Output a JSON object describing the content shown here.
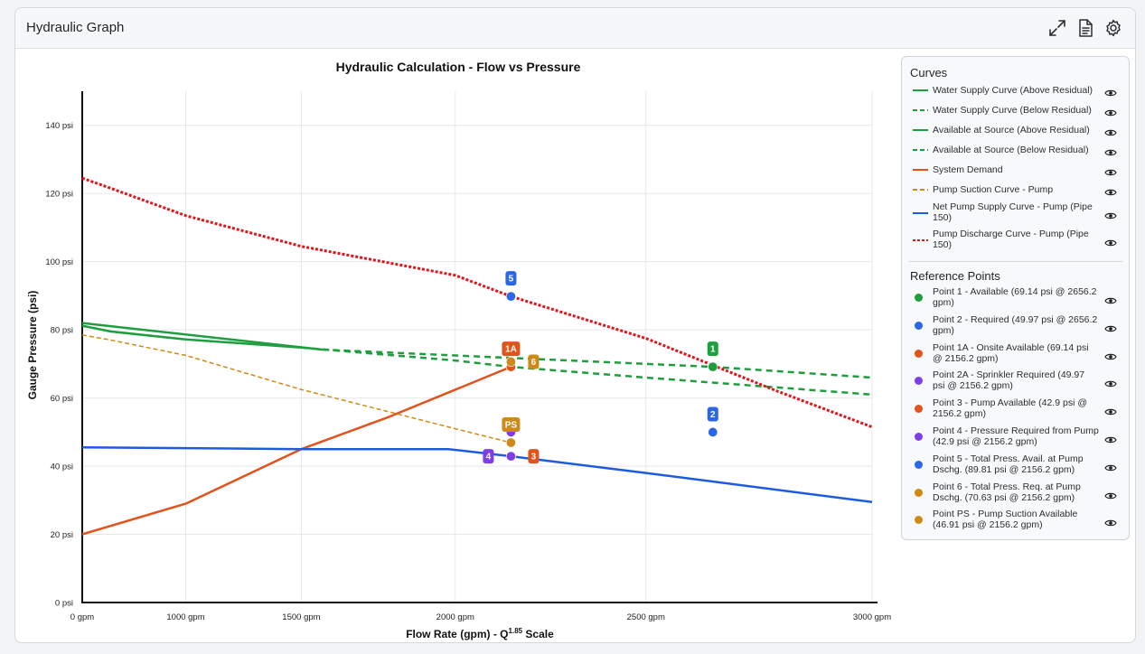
{
  "panel": {
    "title": "Hydraulic Graph",
    "icons": [
      "expand-icon",
      "document-icon",
      "gear-icon"
    ]
  },
  "legend": {
    "curves_heading": "Curves",
    "reference_heading": "Reference Points",
    "curves": [
      {
        "label": "Water Supply Curve (Above Residual)",
        "color": "#1e9e3f",
        "style": "solid"
      },
      {
        "label": "Water Supply Curve (Below Residual)",
        "color": "#1e9e3f",
        "style": "dashed"
      },
      {
        "label": "Available at Source (Above Residual)",
        "color": "#1e9e3f",
        "style": "solid"
      },
      {
        "label": "Available at Source (Below Residual)",
        "color": "#1e9e3f",
        "style": "dashed"
      },
      {
        "label": "System Demand",
        "color": "#e2521b",
        "style": "solid"
      },
      {
        "label": "Pump Suction Curve - Pump",
        "color": "#cf8a16",
        "style": "dashed"
      },
      {
        "label": "Net Pump Supply Curve - Pump (Pipe 150)",
        "color": "#1f5be0",
        "style": "solid"
      },
      {
        "label": "Pump Discharge Curve - Pump (Pipe 150)",
        "color": "#e0141a",
        "style": "dotted"
      }
    ],
    "points": [
      {
        "label": "Point 1 - Available (69.14 psi @ 2656.2 gpm)",
        "color": "#1e9e3f"
      },
      {
        "label": "Point 2 - Required (49.97 psi @ 2656.2 gpm)",
        "color": "#2a67e6"
      },
      {
        "label": "Point 1A - Onsite Available (69.14 psi @ 2156.2 gpm)",
        "color": "#e2521b"
      },
      {
        "label": "Point 2A - Sprinkler Required (49.97 psi @ 2156.2 gpm)",
        "color": "#7d3ee6"
      },
      {
        "label": "Point 3 - Pump Available (42.9 psi @ 2156.2 gpm)",
        "color": "#e2521b"
      },
      {
        "label": "Point 4 - Pressure Required from Pump (42.9 psi @ 2156.2 gpm)",
        "color": "#7d3ee6"
      },
      {
        "label": "Point 5 - Total Press. Avail. at Pump Dschg. (89.81 psi @ 2156.2 gpm)",
        "color": "#2a67e6"
      },
      {
        "label": "Point 6 - Total Press. Req. at Pump Dschg. (70.63 psi @ 2156.2 gpm)",
        "color": "#cf8a16"
      },
      {
        "label": "Point PS - Pump Suction Available (46.91 psi @ 2156.2 gpm)",
        "color": "#cf8a16"
      }
    ]
  },
  "chart_data": {
    "type": "line",
    "title": "Hydraulic Calculation - Flow vs Pressure",
    "xlabel": "Flow Rate (gpm) - Q",
    "xlabel_superscript": "1.85",
    "xlabel_suffix": " Scale",
    "ylabel": "Gauge Pressure (psi)",
    "x_scale": "Q^1.85",
    "xlim": [
      0,
      3000
    ],
    "ylim": [
      0,
      150
    ],
    "x_ticks": [
      {
        "value": 0,
        "label": "0 gpm"
      },
      {
        "value": 1000,
        "label": "1000 gpm"
      },
      {
        "value": 1500,
        "label": "1500 gpm"
      },
      {
        "value": 2000,
        "label": "2000 gpm"
      },
      {
        "value": 2500,
        "label": "2500 gpm"
      },
      {
        "value": 3000,
        "label": "3000 gpm"
      }
    ],
    "y_ticks": [
      {
        "value": 0,
        "label": "0 psi"
      },
      {
        "value": 20,
        "label": "20 psi"
      },
      {
        "value": 40,
        "label": "40 psi"
      },
      {
        "value": 60,
        "label": "60 psi"
      },
      {
        "value": 80,
        "label": "80 psi"
      },
      {
        "value": 100,
        "label": "100 psi"
      },
      {
        "value": 120,
        "label": "120 psi"
      },
      {
        "value": 140,
        "label": "140 psi"
      }
    ],
    "grid": true,
    "series": [
      {
        "name": "Water Supply Curve (Above Residual)",
        "color": "#1e9e3f",
        "style": "solid",
        "width": 2.5,
        "points": [
          [
            0,
            82.0
          ],
          [
            1575,
            74.2
          ]
        ]
      },
      {
        "name": "Water Supply Curve (Below Residual)",
        "color": "#1e9e3f",
        "style": "dashed",
        "width": 2.5,
        "points": [
          [
            1575,
            74.2
          ],
          [
            2656.2,
            69.14
          ],
          [
            3000,
            66.0
          ]
        ]
      },
      {
        "name": "Available at Source (Above Residual)",
        "color": "#1e9e3f",
        "style": "solid",
        "width": 2.5,
        "points": [
          [
            0,
            81.2
          ],
          [
            500,
            79.5
          ],
          [
            1000,
            77.2
          ],
          [
            1500,
            74.8
          ]
        ]
      },
      {
        "name": "Available at Source (Below Residual)",
        "color": "#1e9e3f",
        "style": "dashed",
        "width": 2.5,
        "points": [
          [
            1500,
            74.8
          ],
          [
            2000,
            71.0
          ],
          [
            2156.2,
            69.14
          ],
          [
            2500,
            66.0
          ],
          [
            3000,
            61.0
          ]
        ]
      },
      {
        "name": "System Demand",
        "color": "#e2521b",
        "style": "solid",
        "width": 2.5,
        "points": [
          [
            0,
            20.0
          ],
          [
            500,
            22.5
          ],
          [
            1000,
            29.0
          ],
          [
            1500,
            45.0
          ],
          [
            1800,
            54.5
          ],
          [
            2156.2,
            69.14
          ]
        ]
      },
      {
        "name": "Pump Suction Curve - Pump",
        "color": "#cf8a16",
        "style": "dashed",
        "width": 1.5,
        "points": [
          [
            0,
            78.5
          ],
          [
            500,
            77.0
          ],
          [
            1000,
            72.5
          ],
          [
            1500,
            62.5
          ],
          [
            2000,
            51.0
          ],
          [
            2156.2,
            46.91
          ]
        ]
      },
      {
        "name": "Net Pump Supply Curve - Pump (Pipe 150)",
        "color": "#1f5be0",
        "style": "solid",
        "width": 2.5,
        "points": [
          [
            0,
            45.5
          ],
          [
            1000,
            45.3
          ],
          [
            1500,
            45.0
          ],
          [
            1980,
            45.0
          ],
          [
            2156.2,
            42.9
          ],
          [
            2500,
            38.0
          ],
          [
            3000,
            29.5
          ]
        ]
      },
      {
        "name": "Pump Discharge Curve - Pump (Pipe 150)",
        "color": "#e0141a",
        "style": "dotted",
        "width": 3,
        "points": [
          [
            0,
            124.5
          ],
          [
            500,
            121.5
          ],
          [
            1000,
            113.5
          ],
          [
            1500,
            104.5
          ],
          [
            2000,
            96.0
          ],
          [
            2156.2,
            89.81
          ],
          [
            2500,
            77.5
          ],
          [
            2800,
            62.0
          ],
          [
            3000,
            51.5
          ]
        ]
      }
    ],
    "markers": [
      {
        "id": "1",
        "x": 2656.2,
        "y": 69.14,
        "color": "#1e9e3f",
        "label_pos": "above"
      },
      {
        "id": "2",
        "x": 2656.2,
        "y": 49.97,
        "color": "#2a67e6",
        "label_pos": "above"
      },
      {
        "id": "1A",
        "x": 2156.2,
        "y": 69.14,
        "color": "#e2521b",
        "label_pos": "above"
      },
      {
        "id": "2A",
        "x": 2156.2,
        "y": 49.97,
        "color": "#7d3ee6",
        "label_pos": "none"
      },
      {
        "id": "3",
        "x": 2156.2,
        "y": 42.9,
        "color": "#e2521b",
        "label_pos": "right"
      },
      {
        "id": "4",
        "x": 2156.2,
        "y": 42.9,
        "color": "#7d3ee6",
        "label_pos": "left"
      },
      {
        "id": "5",
        "x": 2156.2,
        "y": 89.81,
        "color": "#2a67e6",
        "label_pos": "above"
      },
      {
        "id": "6",
        "x": 2156.2,
        "y": 70.63,
        "color": "#cf8a16",
        "label_pos": "right"
      },
      {
        "id": "PS",
        "x": 2156.2,
        "y": 46.91,
        "color": "#cf8a16",
        "label_pos": "above"
      }
    ]
  }
}
